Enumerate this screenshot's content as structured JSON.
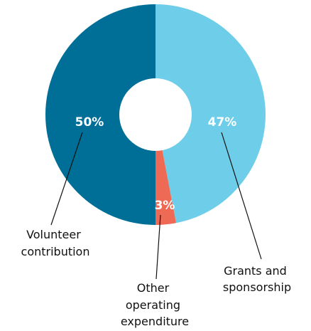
{
  "chart_data": {
    "type": "pie",
    "variant": "donut",
    "start": "top",
    "direction": "clockwise",
    "legend": "none",
    "slices": [
      {
        "label": "Grants and sponsorship",
        "value": 47,
        "value_label": "47%",
        "color": "#6ecde8"
      },
      {
        "label": "Other operating expenditure",
        "value": 3,
        "value_label": "3%",
        "color": "#ee6a55"
      },
      {
        "label": "Volunteer contribution",
        "value": 50,
        "value_label": "50%",
        "color": "#006f98"
      }
    ]
  },
  "labels": {
    "grants": [
      "Grants and",
      "sponsorship"
    ],
    "other": [
      "Other",
      "operating",
      "expenditure"
    ],
    "volunteer": [
      "Volunteer",
      "contribution"
    ]
  }
}
